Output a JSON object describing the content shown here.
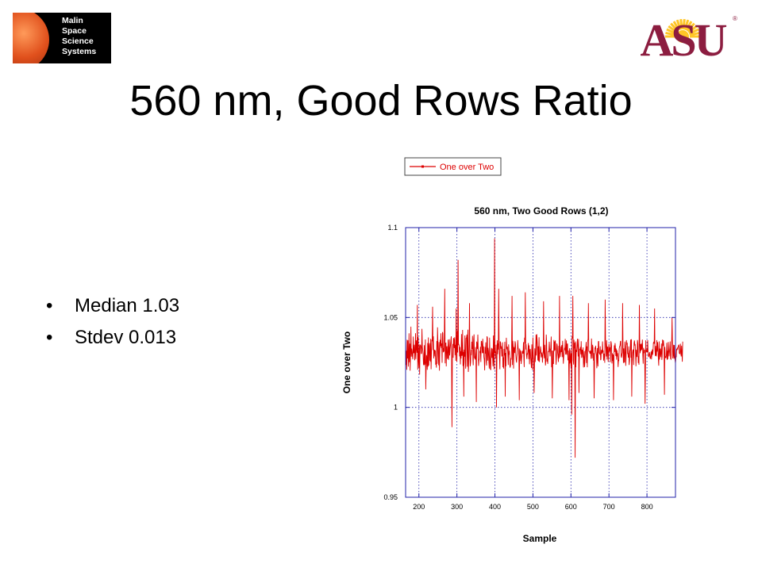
{
  "slide": {
    "title": "560 nm, Good Rows Ratio",
    "bullets": [
      "Median 1.03",
      "Stdev 0.013"
    ],
    "logos": {
      "left_lines": [
        "Malin",
        "Space",
        "Science",
        "Systems"
      ],
      "right_text": "ASU",
      "right_mark": "®"
    }
  },
  "colors": {
    "series": "#dd0000",
    "axes": "#2222aa",
    "grid": "#2222aa",
    "asu_maroon": "#8c1d40",
    "asu_gold": "#ffc627"
  },
  "chart_data": {
    "type": "line",
    "title": "560 nm, Two Good Rows (1,2)",
    "xlabel": "Sample",
    "ylabel": "One over Two",
    "xlim": [
      165,
      875
    ],
    "ylim": [
      0.95,
      1.1
    ],
    "xticks": [
      200,
      300,
      400,
      500,
      600,
      700,
      800
    ],
    "yticks": [
      0.95,
      1,
      1.05,
      1.1
    ],
    "ytick_labels": [
      "0.95",
      "1",
      "1.05",
      "1.1"
    ],
    "grid": true,
    "legend": {
      "placement": "top-center",
      "entries": [
        "One over Two"
      ]
    },
    "series": [
      {
        "name": "One over Two",
        "x_start": 165,
        "x_step": 1,
        "values": [
          1.0389,
          1.0236,
          1.0315,
          1.0209,
          1.0376,
          1.0272,
          1.0373,
          1.0227,
          1.0273,
          1.0412,
          1.0251,
          1.0355,
          1.0204,
          1.0309,
          1.0449,
          1.0282,
          1.0327,
          1.0313,
          1.0282,
          1.0267,
          1.0394,
          1.0301,
          1.0306,
          1.0349,
          1.0262,
          1.0305,
          1.0413,
          1.0269,
          1.0373,
          1.0329,
          1.0304,
          1.0437,
          1.0209,
          1.0391,
          1.0258,
          1.0221,
          1.035,
          1.0183,
          1.0339,
          1.0349,
          1.0338,
          1.0299,
          1.03,
          1.0437,
          1.0335,
          1.0323,
          1.0298,
          1.024,
          1.0236,
          1.0346,
          1.0237,
          1.0252,
          1.0378,
          1.0344,
          1.0221,
          1.0291,
          1.0275,
          1.0209,
          1.0358,
          1.0226,
          1.0389,
          1.0233,
          1.0339,
          1.0357,
          1.0263,
          1.0259,
          1.0381,
          1.0212,
          1.0311,
          1.0373,
          1.0371,
          1.0272,
          1.0319,
          1.0395,
          1.0272,
          1.0318,
          1.0319,
          1.0283,
          1.0317,
          1.0238,
          1.0244,
          1.0221,
          1.0369,
          1.0242,
          1.0445,
          1.0361,
          1.0281,
          1.0234,
          1.0364,
          1.0204,
          1.0323,
          1.0376,
          1.034,
          1.0412,
          1.033,
          1.0356,
          1.0248,
          1.0419,
          1.0412,
          1.0306,
          1.033,
          1.031,
          1.0398,
          1.027,
          1.0245,
          1.0357,
          1.0358,
          1.0228,
          1.0335,
          1.034,
          1.0272,
          1.0274,
          1.0377,
          1.0264,
          1.0315,
          1.0379,
          1.0289,
          1.0325,
          1.0345,
          1.0372,
          1.0395,
          1.0254,
          1.0241,
          1.0255,
          1.0353,
          1.0276,
          1.0386,
          1.0379,
          1.033,
          1.039,
          1.029,
          1.0348,
          1.0259,
          1.0288,
          1.033,
          1.0253,
          1.0426,
          1.0305,
          1.0419,
          1.0346,
          1.035,
          1.0343,
          1.0284,
          1.0336,
          1.0239,
          1.0312,
          1.0272,
          1.0408,
          1.0286,
          1.0296,
          1.0431,
          1.023,
          1.0309,
          1.0297,
          1.0321,
          1.0282,
          1.04,
          1.025,
          1.0215,
          1.0384,
          1.0386,
          1.0405,
          1.0226,
          1.0375,
          1.0432,
          1.0197,
          1.0235,
          1.0351,
          1.0256,
          1.0319,
          1.0229,
          1.025,
          1.0321,
          1.029,
          1.0365,
          1.0325,
          1.0398,
          1.0265,
          1.0234,
          1.0375,
          1.0406,
          1.0277,
          1.028,
          1.0266,
          1.0335,
          1.0276,
          1.0265,
          1.0366,
          1.0352,
          1.0324,
          1.0405,
          1.0321,
          1.0231,
          1.026,
          1.027,
          1.0315,
          1.0302,
          1.0337,
          1.0252,
          1.0367,
          1.0368,
          1.0338,
          1.0301,
          1.0382,
          1.0301,
          1.0339,
          1.028,
          1.0266,
          1.0206,
          1.0336,
          1.0299,
          1.0362,
          1.0258,
          1.0233,
          1.0395,
          1.0388,
          1.026,
          1.0331,
          1.0312,
          1.0253,
          1.0216,
          1.0388,
          1.0286,
          1.0211,
          1.021,
          1.0296,
          1.0331,
          1.0275,
          1.0327,
          1.0268,
          1.0229,
          1.04,
          1.0253,
          1.0211,
          1.0357,
          1.0306,
          1.0308,
          1.0272,
          1.0349,
          1.0329,
          1.0209,
          1.0373,
          1.0296,
          1.0355,
          1.0321,
          1.0363,
          1.0349,
          1.0276,
          1.0212,
          1.0367,
          1.0359,
          1.0326,
          1.034,
          1.0283,
          1.0289,
          1.0362,
          1.0223,
          1.0278,
          1.0216,
          1.0325,
          1.0289,
          1.0365,
          1.0281,
          1.0303,
          1.0229,
          1.0387,
          1.033,
          1.0325,
          1.0338,
          1.0295,
          1.0236,
          1.035,
          1.0293,
          1.0315,
          1.0241,
          1.0221,
          1.0235,
          1.0271,
          1.0269,
          1.0356,
          1.0249,
          1.0236,
          1.037,
          1.0342,
          1.0216,
          1.0332,
          1.0328,
          1.0302,
          1.0368,
          1.0353,
          1.029,
          1.0259,
          1.0249,
          1.0288,
          1.0301,
          1.0374,
          1.0334,
          1.032,
          1.0283,
          1.0335,
          1.0327,
          1.0257,
          1.0314,
          1.031,
          1.0241,
          1.0271,
          1.0285,
          1.0315,
          1.0301,
          1.0301,
          1.0363,
          1.0285,
          1.0224,
          1.0388,
          1.0354,
          1.0338,
          1.0322,
          1.0351,
          1.0292,
          1.0269,
          1.0298,
          1.0297,
          1.032,
          1.0358,
          1.0268,
          1.0345,
          1.024,
          1.0319,
          1.0325,
          1.0282,
          1.0254,
          1.0219,
          1.035,
          1.0268,
          1.0208,
          1.0389,
          1.0293,
          1.0261,
          1.0302,
          1.0201,
          1.0328,
          1.0252,
          1.0297,
          1.0404,
          1.0289,
          1.0407,
          1.0376,
          1.0334,
          1.0261,
          1.0339,
          1.0256,
          1.039,
          1.0252,
          1.0299,
          1.0302,
          1.0339,
          1.0316,
          1.0278,
          1.03,
          1.0304,
          1.0249,
          1.029,
          1.0304,
          1.0321,
          1.0311,
          1.0273,
          1.0348,
          1.0291,
          1.0233,
          1.0261,
          1.0405,
          1.0355,
          1.0254,
          1.0271,
          1.0242,
          1.0314,
          1.0307,
          1.0319,
          1.0365,
          1.0315,
          1.0284,
          1.0322,
          1.0328,
          1.0394,
          1.0223,
          1.0316,
          1.0318,
          1.0219,
          1.0315,
          1.0241,
          1.0375,
          1.0313,
          1.0367,
          1.0318,
          1.0373,
          1.0298,
          1.0237,
          1.0283,
          1.0355,
          1.0342,
          1.0305,
          1.0287,
          1.0252,
          1.0342,
          1.0273,
          1.0367,
          1.0319,
          1.028,
          1.031,
          1.0339,
          1.0308,
          1.0347,
          1.0279,
          1.037,
          1.03,
          1.0243,
          1.0281,
          1.0308,
          1.0331,
          1.0318,
          1.0381,
          1.0294,
          1.0302,
          1.0372,
          1.0292,
          1.0349,
          1.0355,
          1.0262,
          1.0316,
          1.0263,
          1.0322,
          1.0329,
          1.0244,
          1.0256,
          1.0322,
          1.0225,
          1.0301,
          1.0342,
          1.0395,
          1.0382,
          1.0394,
          1.0262,
          1.0238,
          1.0376,
          1.0328,
          1.0359,
          1.0297,
          1.0367,
          1.0223,
          1.032,
          1.0308,
          1.0344,
          1.0382,
          1.0339,
          1.0283,
          1.038,
          1.028,
          1.0256,
          1.0323,
          1.0321,
          1.0336,
          1.0295,
          1.0368,
          1.0275,
          1.0321,
          1.0316,
          1.0278,
          1.0334,
          1.0222,
          1.0256,
          1.0313,
          1.0224,
          1.0267,
          1.0309,
          1.0327,
          1.0364,
          1.0247,
          1.0339,
          1.0223,
          1.0366,
          1.0381,
          1.0317,
          1.0312,
          1.0311,
          1.0308,
          1.0299,
          1.0316,
          1.0304,
          1.027,
          1.0383,
          1.0331,
          1.0272,
          1.0348,
          1.0332,
          1.026,
          1.0302,
          1.0295,
          1.0246,
          1.0333,
          1.0327,
          1.0343,
          1.0305,
          1.0292,
          1.0218,
          1.033,
          1.0262,
          1.0228,
          1.0366,
          1.0367,
          1.0302,
          1.0302,
          1.0293,
          1.034,
          1.0263,
          1.0268,
          1.0317,
          1.0319,
          1.0299,
          1.0367,
          1.031,
          1.0313,
          1.026,
          1.0299,
          1.0291,
          1.0248,
          1.0304,
          1.0359,
          1.0322,
          1.0283,
          1.0373,
          1.0266,
          1.0335,
          1.0336,
          1.0253,
          1.0296,
          1.0354,
          1.0316,
          1.0311,
          1.0335,
          1.0251,
          1.0368,
          1.0357,
          1.0336,
          1.0244,
          1.0301,
          1.0258,
          1.0294,
          1.0273,
          1.0263,
          1.0345,
          1.0308,
          1.0357,
          1.0336,
          1.0286,
          1.0327,
          1.0265,
          1.0318,
          1.0283,
          1.0301,
          1.0225,
          1.0261,
          1.026,
          1.0326,
          1.0339,
          1.0342,
          1.0368,
          1.0368,
          1.0286,
          1.0276,
          1.0296,
          1.0304,
          1.0378,
          1.0333,
          1.0247,
          1.0328,
          1.0253,
          1.0249,
          1.0366,
          1.0337,
          1.0231,
          1.0272,
          1.0374,
          1.0349,
          1.036,
          1.0297,
          1.0302,
          1.0277,
          1.0339,
          1.0236,
          1.0259,
          1.0312,
          1.0322,
          1.0377,
          1.0276,
          1.0379,
          1.0241,
          1.0251,
          1.0305,
          1.0319,
          1.032,
          1.0236,
          1.0356,
          1.0372,
          1.0346,
          1.0348,
          1.0298,
          1.0229,
          1.0321,
          1.0291,
          1.028,
          1.0375,
          1.0355,
          1.0247,
          1.0284,
          1.0237,
          1.0288,
          1.0359,
          1.0301,
          1.0351,
          1.0313,
          1.0355,
          1.032,
          1.0344,
          1.0377,
          1.0294,
          1.0243,
          1.0331,
          1.0319,
          1.0301,
          1.032,
          1.0314,
          1.0233,
          1.0373,
          1.0307,
          1.0316,
          1.032,
          1.0307,
          1.0374,
          1.0304,
          1.028,
          1.0286,
          1.0298,
          1.0308,
          1.0276,
          1.027,
          1.0288,
          1.0312,
          1.0267,
          1.0299,
          1.0322,
          1.0292,
          1.0312,
          1.0359,
          1.0363,
          1.0354,
          1.0313,
          1.0325,
          1.0285,
          1.0342,
          1.029,
          1.0287,
          1.0374,
          1.031,
          1.0363,
          1.0323,
          1.0261,
          1.0232,
          1.0367,
          1.0266,
          1.032,
          1.0327,
          1.0279,
          1.0301,
          1.0355,
          1.0264,
          1.0282,
          1.0377,
          1.0341,
          1.0373,
          1.0351,
          1.0321,
          1.0289,
          1.0336,
          1.0277,
          1.0283,
          1.0273,
          1.0291,
          1.0359,
          1.0264,
          1.0315,
          1.0269,
          1.0364,
          1.0322,
          1.0284,
          1.0302,
          1.0328,
          1.0367,
          1.0271,
          1.0268,
          1.0306,
          1.0351,
          1.0332,
          1.0346,
          1.0272,
          1.0289,
          1.0348,
          1.0271,
          1.0347,
          1.0282,
          1.0263,
          1.0244,
          1.0281,
          1.0281,
          1.0323,
          1.032,
          1.033,
          1.0326,
          1.034,
          1.0344,
          1.0349,
          1.0301,
          1.0301,
          1.0298,
          1.0354,
          1.0309,
          1.0283,
          1.0343,
          1.0304,
          1.0254,
          1.0366
        ]
      }
    ],
    "spikes": [
      {
        "x": 196,
        "y": 1.057
      },
      {
        "x": 218,
        "y": 1.01
      },
      {
        "x": 236,
        "y": 1.056
      },
      {
        "x": 268,
        "y": 1.066
      },
      {
        "x": 287,
        "y": 0.989
      },
      {
        "x": 298,
        "y": 1.055
      },
      {
        "x": 303,
        "y": 1.082
      },
      {
        "x": 318,
        "y": 1.006
      },
      {
        "x": 333,
        "y": 1.058
      },
      {
        "x": 351,
        "y": 1.003
      },
      {
        "x": 399,
        "y": 1.094
      },
      {
        "x": 404,
        "y": 1.0
      },
      {
        "x": 410,
        "y": 1.066
      },
      {
        "x": 427,
        "y": 1.006
      },
      {
        "x": 445,
        "y": 1.062
      },
      {
        "x": 464,
        "y": 1.004
      },
      {
        "x": 480,
        "y": 1.064
      },
      {
        "x": 503,
        "y": 1.008
      },
      {
        "x": 528,
        "y": 1.059
      },
      {
        "x": 551,
        "y": 1.005
      },
      {
        "x": 570,
        "y": 1.062
      },
      {
        "x": 595,
        "y": 1.004
      },
      {
        "x": 602,
        "y": 0.996
      },
      {
        "x": 605,
        "y": 1.062
      },
      {
        "x": 611,
        "y": 0.972
      },
      {
        "x": 621,
        "y": 1.008
      },
      {
        "x": 646,
        "y": 1.058
      },
      {
        "x": 661,
        "y": 1.005
      },
      {
        "x": 690,
        "y": 1.06
      },
      {
        "x": 712,
        "y": 1.004
      },
      {
        "x": 736,
        "y": 1.058
      },
      {
        "x": 760,
        "y": 1.006
      },
      {
        "x": 780,
        "y": 1.057
      },
      {
        "x": 795,
        "y": 1.002
      },
      {
        "x": 820,
        "y": 1.055
      },
      {
        "x": 846,
        "y": 1.007
      },
      {
        "x": 866,
        "y": 1.05
      }
    ]
  }
}
